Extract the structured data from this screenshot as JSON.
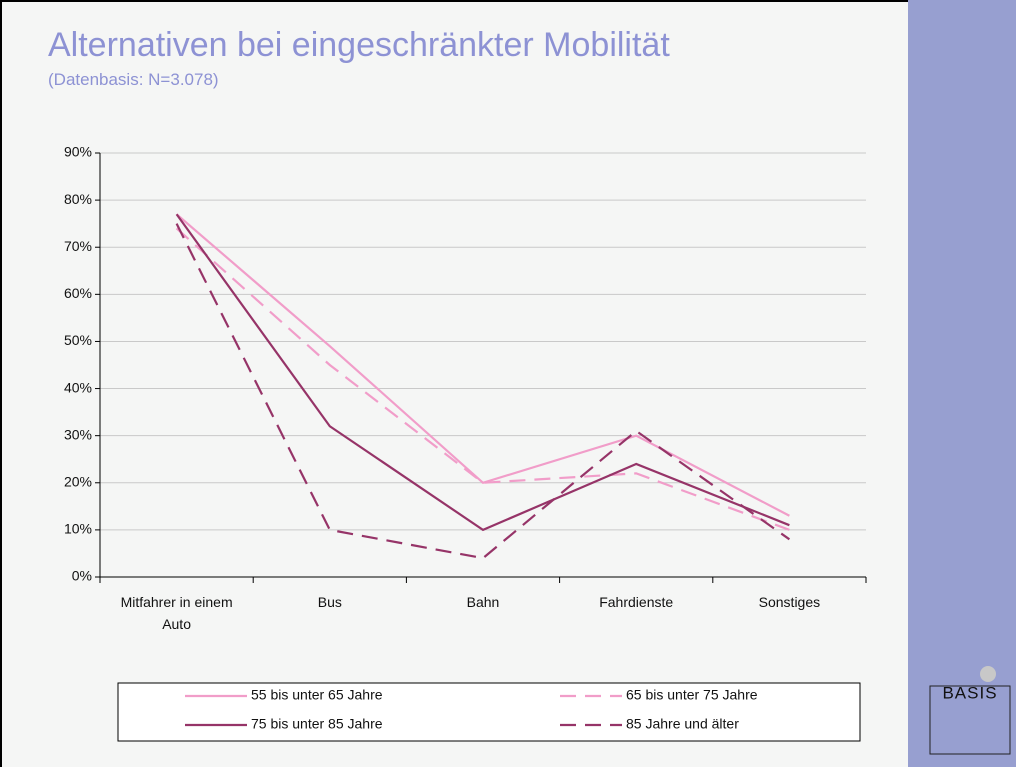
{
  "chart_data": {
    "type": "line",
    "title": "Alternativen bei eingeschränkter Mobilität",
    "subtitle": "(Datenbasis: N=3.078)",
    "categories": [
      "Mitfahrer in einem Auto",
      "Bus",
      "Bahn",
      "Fahrdienste",
      "Sonstiges"
    ],
    "series": [
      {
        "name": "55 bis unter 65 Jahre",
        "color": "#f19dc9",
        "dashed": false,
        "values": [
          77,
          49,
          20,
          30,
          13
        ]
      },
      {
        "name": "65 bis unter 75 Jahre",
        "color": "#f19dc9",
        "dashed": true,
        "values": [
          74,
          45,
          20,
          22,
          10
        ]
      },
      {
        "name": "75 bis unter 85 Jahre",
        "color": "#963468",
        "dashed": false,
        "values": [
          77,
          32,
          10,
          24,
          11
        ]
      },
      {
        "name": "85 Jahre und älter",
        "color": "#963468",
        "dashed": true,
        "values": [
          75,
          10,
          4,
          31,
          8
        ]
      }
    ],
    "ylim": [
      0,
      90
    ],
    "yticks": [
      {
        "value": 0,
        "label": "0%"
      },
      {
        "value": 10,
        "label": "10%"
      },
      {
        "value": 20,
        "label": "20%"
      },
      {
        "value": 30,
        "label": "30%"
      },
      {
        "value": 40,
        "label": "40%"
      },
      {
        "value": 50,
        "label": "50%"
      },
      {
        "value": 60,
        "label": "60%"
      },
      {
        "value": 70,
        "label": "70%"
      },
      {
        "value": 80,
        "label": "80%"
      },
      {
        "value": 90,
        "label": "90%"
      }
    ],
    "grid": true,
    "legend": "bottom",
    "logo": "BASIS"
  }
}
